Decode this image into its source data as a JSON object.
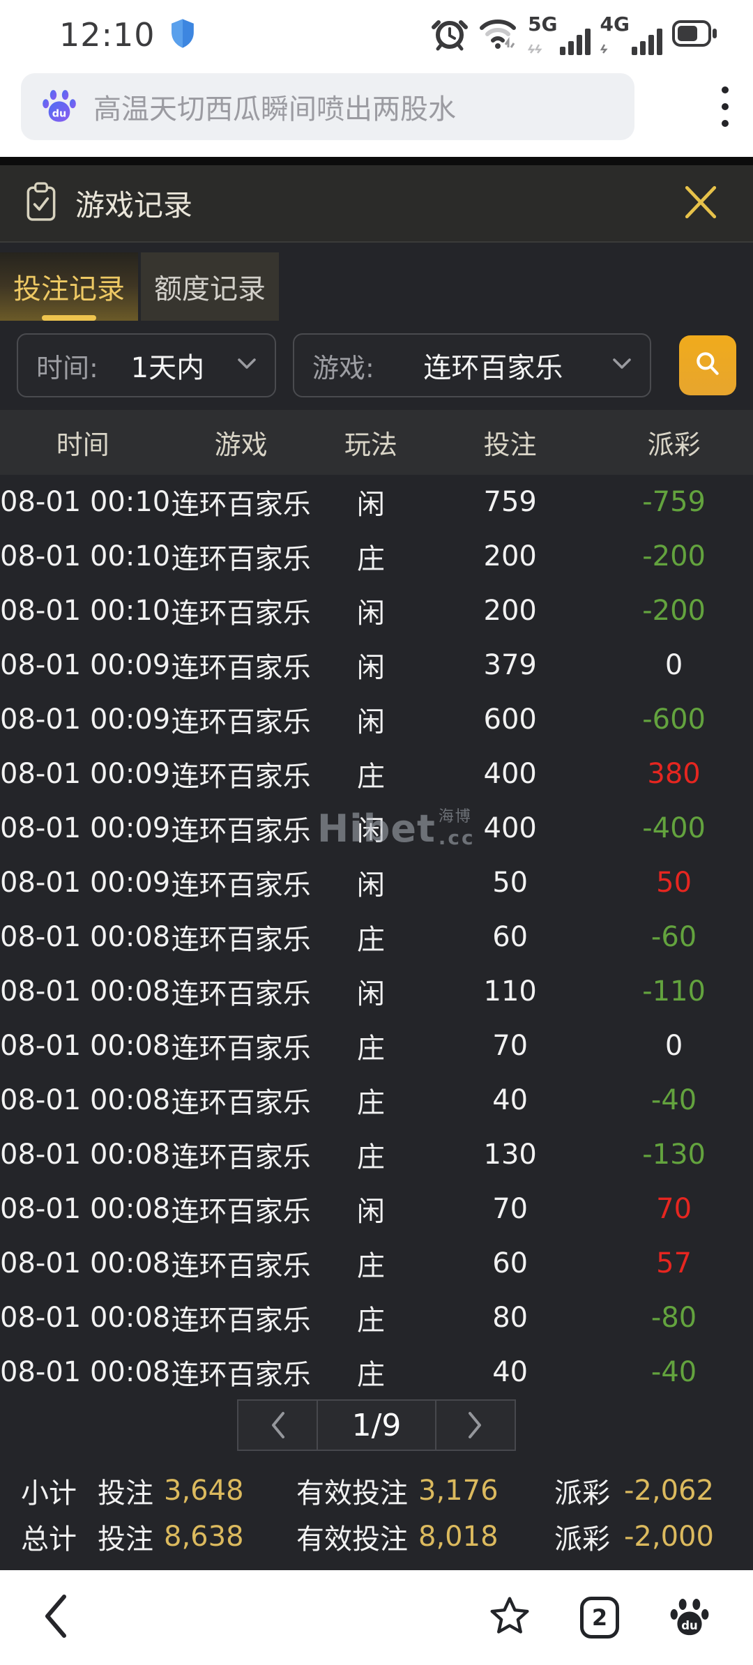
{
  "status_bar": {
    "time": "12:10",
    "network_labels": [
      "5G",
      "4G"
    ]
  },
  "search_bar": {
    "query": "高温天切西瓜瞬间喷出两股水"
  },
  "modal": {
    "title": "游戏记录",
    "tabs": [
      {
        "label": "投注记录",
        "active": true
      },
      {
        "label": "额度记录",
        "active": false
      }
    ],
    "filters": {
      "time_label": "时间:",
      "time_value": "1天内",
      "game_label": "游戏:",
      "game_value": "连环百家乐"
    },
    "table": {
      "headers": [
        "时间",
        "游戏",
        "玩法",
        "投注",
        "派彩"
      ],
      "rows": [
        {
          "time": "08-01 00:10",
          "game": "连环百家乐",
          "play": "闲",
          "bet": "759",
          "payout": "-759",
          "payout_color": "green"
        },
        {
          "time": "08-01 00:10",
          "game": "连环百家乐",
          "play": "庄",
          "bet": "200",
          "payout": "-200",
          "payout_color": "green"
        },
        {
          "time": "08-01 00:10",
          "game": "连环百家乐",
          "play": "闲",
          "bet": "200",
          "payout": "-200",
          "payout_color": "green"
        },
        {
          "time": "08-01 00:09",
          "game": "连环百家乐",
          "play": "闲",
          "bet": "379",
          "payout": "0",
          "payout_color": "white"
        },
        {
          "time": "08-01 00:09",
          "game": "连环百家乐",
          "play": "闲",
          "bet": "600",
          "payout": "-600",
          "payout_color": "green"
        },
        {
          "time": "08-01 00:09",
          "game": "连环百家乐",
          "play": "庄",
          "bet": "400",
          "payout": "380",
          "payout_color": "red"
        },
        {
          "time": "08-01 00:09",
          "game": "连环百家乐",
          "play": "闲",
          "bet": "400",
          "payout": "-400",
          "payout_color": "green"
        },
        {
          "time": "08-01 00:09",
          "game": "连环百家乐",
          "play": "闲",
          "bet": "50",
          "payout": "50",
          "payout_color": "red"
        },
        {
          "time": "08-01 00:08",
          "game": "连环百家乐",
          "play": "庄",
          "bet": "60",
          "payout": "-60",
          "payout_color": "green"
        },
        {
          "time": "08-01 00:08",
          "game": "连环百家乐",
          "play": "闲",
          "bet": "110",
          "payout": "-110",
          "payout_color": "green"
        },
        {
          "time": "08-01 00:08",
          "game": "连环百家乐",
          "play": "庄",
          "bet": "70",
          "payout": "0",
          "payout_color": "white"
        },
        {
          "time": "08-01 00:08",
          "game": "连环百家乐",
          "play": "庄",
          "bet": "40",
          "payout": "-40",
          "payout_color": "green"
        },
        {
          "time": "08-01 00:08",
          "game": "连环百家乐",
          "play": "庄",
          "bet": "130",
          "payout": "-130",
          "payout_color": "green"
        },
        {
          "time": "08-01 00:08",
          "game": "连环百家乐",
          "play": "闲",
          "bet": "70",
          "payout": "70",
          "payout_color": "red"
        },
        {
          "time": "08-01 00:08",
          "game": "连环百家乐",
          "play": "庄",
          "bet": "60",
          "payout": "57",
          "payout_color": "red"
        },
        {
          "time": "08-01 00:08",
          "game": "连环百家乐",
          "play": "庄",
          "bet": "80",
          "payout": "-80",
          "payout_color": "green"
        },
        {
          "time": "08-01 00:08",
          "game": "连环百家乐",
          "play": "庄",
          "bet": "40",
          "payout": "-40",
          "payout_color": "green"
        }
      ]
    },
    "pagination": {
      "current": "1/9"
    },
    "summary": [
      {
        "label": "小计",
        "bet_label": "投注",
        "bet": "3,648",
        "valid_label": "有效投注",
        "valid": "3,176",
        "payout_label": "派彩",
        "payout": "-2,062"
      },
      {
        "label": "总计",
        "bet_label": "投注",
        "bet": "8,638",
        "valid_label": "有效投注",
        "valid": "8,018",
        "payout_label": "派彩",
        "payout": "-2,000"
      }
    ],
    "watermark": {
      "brand": "Hibet",
      "cn": "海博",
      "suffix": ".cc"
    }
  },
  "bottom_bar": {
    "tab_count": "2"
  },
  "colors": {
    "accent_gold": "#eda91f",
    "tab_gold": "#eec964",
    "green": "#63a33e",
    "red": "#e62620",
    "summary_gold": "#dcba5e",
    "shield_blue": "#3d86e0"
  }
}
